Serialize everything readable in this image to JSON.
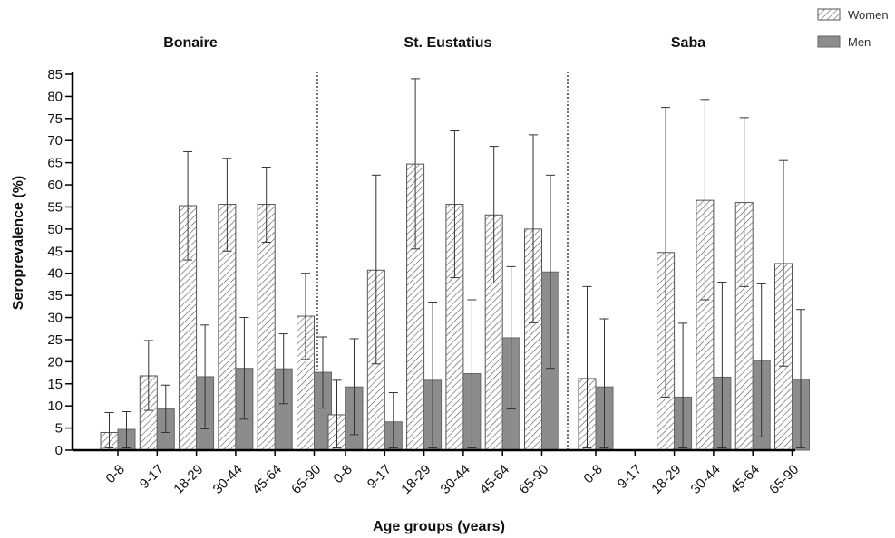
{
  "chart_data": {
    "type": "bar",
    "ylabel": "Seroprevalence (%)",
    "xlabel": "Age groups (years)",
    "ylim": [
      0,
      85
    ],
    "yticks": [
      0,
      5,
      10,
      15,
      20,
      25,
      30,
      35,
      40,
      45,
      50,
      55,
      60,
      65,
      70,
      75,
      80,
      85
    ],
    "legend_position": "top-right",
    "series": [
      {
        "name": "Women",
        "pattern": "hatched",
        "color": "#ffffff"
      },
      {
        "name": "Men",
        "pattern": "solid",
        "color": "#8c8c8c"
      }
    ],
    "groups": [
      {
        "name": "Bonaire",
        "categories": [
          "0-8",
          "9-17",
          "18-29",
          "30-44",
          "45-64",
          "65-90"
        ],
        "women": [
          {
            "value": 4.0,
            "err_low": 0.5,
            "err_high": 8.5
          },
          {
            "value": 16.8,
            "err_low": 9.0,
            "err_high": 24.8
          },
          {
            "value": 55.3,
            "err_low": 43.0,
            "err_high": 67.5
          },
          {
            "value": 55.6,
            "err_low": 45.0,
            "err_high": 66.0
          },
          {
            "value": 55.6,
            "err_low": 47.0,
            "err_high": 64.0
          },
          {
            "value": 30.3,
            "err_low": 20.5,
            "err_high": 40.0
          }
        ],
        "men": [
          {
            "value": 4.7,
            "err_low": 0.5,
            "err_high": 8.7
          },
          {
            "value": 9.3,
            "err_low": 4.0,
            "err_high": 14.7
          },
          {
            "value": 16.6,
            "err_low": 4.8,
            "err_high": 28.3
          },
          {
            "value": 18.5,
            "err_low": 7.0,
            "err_high": 30.0
          },
          {
            "value": 18.4,
            "err_low": 10.5,
            "err_high": 26.3
          },
          {
            "value": 17.6,
            "err_low": 9.5,
            "err_high": 25.6
          }
        ]
      },
      {
        "name": "St. Eustatius",
        "categories": [
          "0-8",
          "9-17",
          "18-29",
          "30-44",
          "45-64",
          "65-90"
        ],
        "women": [
          {
            "value": 8.0,
            "err_low": 0.5,
            "err_high": 15.8
          },
          {
            "value": 40.7,
            "err_low": 19.5,
            "err_high": 62.2
          },
          {
            "value": 64.7,
            "err_low": 45.5,
            "err_high": 84.0
          },
          {
            "value": 55.6,
            "err_low": 39.0,
            "err_high": 72.2
          },
          {
            "value": 53.2,
            "err_low": 37.8,
            "err_high": 68.7
          },
          {
            "value": 50.0,
            "err_low": 28.8,
            "err_high": 71.3
          }
        ],
        "men": [
          {
            "value": 14.3,
            "err_low": 3.5,
            "err_high": 25.2
          },
          {
            "value": 6.4,
            "err_low": 0.5,
            "err_high": 13.0
          },
          {
            "value": 15.8,
            "err_low": 0.5,
            "err_high": 33.5
          },
          {
            "value": 17.3,
            "err_low": 0.5,
            "err_high": 34.0
          },
          {
            "value": 25.4,
            "err_low": 9.3,
            "err_high": 41.5
          },
          {
            "value": 40.3,
            "err_low": 18.5,
            "err_high": 62.2
          }
        ]
      },
      {
        "name": "Saba",
        "categories": [
          "0-8",
          "9-17",
          "18-29",
          "30-44",
          "45-64",
          "65-90"
        ],
        "women": [
          {
            "value": 16.2,
            "err_low": 0.5,
            "err_high": 37.0
          },
          null,
          {
            "value": 44.7,
            "err_low": 12.0,
            "err_high": 77.5
          },
          {
            "value": 56.5,
            "err_low": 34.0,
            "err_high": 79.3
          },
          {
            "value": 56.0,
            "err_low": 37.0,
            "err_high": 75.2
          },
          {
            "value": 42.2,
            "err_low": 19.0,
            "err_high": 65.5
          }
        ],
        "men": [
          {
            "value": 14.3,
            "err_low": 0.5,
            "err_high": 29.7
          },
          null,
          {
            "value": 12.0,
            "err_low": 0.5,
            "err_high": 28.7
          },
          {
            "value": 16.5,
            "err_low": 0.5,
            "err_high": 38.0
          },
          {
            "value": 20.3,
            "err_low": 3.0,
            "err_high": 37.6
          },
          {
            "value": 16.0,
            "err_low": 0.5,
            "err_high": 31.8
          }
        ]
      }
    ]
  }
}
